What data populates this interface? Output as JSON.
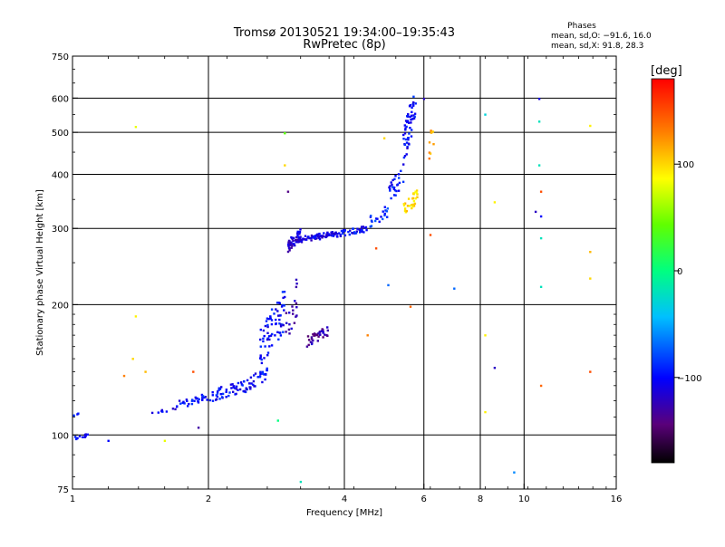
{
  "chart_data": {
    "type": "scatter",
    "title": "Tromsø 20130521 19:34:00–19:35:43",
    "subtitle": "RwPretec (8p)",
    "xlabel": "Frequency [MHz]",
    "ylabel": "Stationary phase Virtual Height [km]",
    "x_scale": "log",
    "y_scale": "log",
    "xlim": [
      1,
      16
    ],
    "ylim": [
      75,
      750
    ],
    "x_ticks": [
      1,
      2,
      4,
      6,
      8,
      10,
      16
    ],
    "x_tick_labels": [
      "1",
      "2",
      "4",
      "6",
      "8",
      "10",
      "16"
    ],
    "y_ticks": [
      75,
      100,
      200,
      300,
      400,
      500,
      600,
      750
    ],
    "y_tick_labels": [
      "75",
      "100",
      "200",
      "300",
      "400",
      "500",
      "600",
      "750"
    ],
    "grid_x": [
      2,
      4,
      6,
      8,
      10
    ],
    "grid_y": [
      100,
      200,
      300,
      400,
      500,
      600
    ],
    "grid": true,
    "stats": {
      "header": "Phases",
      "line_o": "mean, sd,O: −91.6, 16.0",
      "line_x": "mean, sd,X:  91.8, 28.3"
    },
    "colorbar": {
      "label": "[deg]",
      "min": -180,
      "max": 180,
      "ticks": [
        100,
        0,
        -100
      ],
      "tick_labels": [
        "100",
        "0",
        "−100"
      ],
      "colormap": "rainbow"
    },
    "clusters": [
      {
        "f": [
          1.0,
          1.08
        ],
        "h": [
          97,
          101
        ],
        "n": 12,
        "phase": -100
      },
      {
        "f": [
          1.0,
          1.03
        ],
        "h": [
          110,
          113
        ],
        "n": 3,
        "phase": -100
      },
      {
        "f": [
          1.5,
          1.7
        ],
        "h": [
          112,
          116
        ],
        "n": 8,
        "phase": -105
      },
      {
        "f": [
          1.7,
          2.0
        ],
        "h": [
          115,
          125
        ],
        "n": 30,
        "phase": -100
      },
      {
        "f": [
          2.0,
          2.4
        ],
        "h": [
          118,
          135
        ],
        "n": 45,
        "phase": -100
      },
      {
        "f": [
          2.4,
          2.7
        ],
        "h": [
          125,
          145
        ],
        "n": 35,
        "phase": -100
      },
      {
        "f": [
          2.6,
          2.95
        ],
        "h": [
          140,
          220
        ],
        "n": 70,
        "phase": -100
      },
      {
        "f": [
          2.95,
          3.15
        ],
        "h": [
          150,
          240
        ],
        "n": 20,
        "phase": -130
      },
      {
        "f": [
          3.3,
          3.7
        ],
        "h": [
          160,
          180
        ],
        "n": 35,
        "phase": -130
      },
      {
        "f": [
          3.0,
          3.2
        ],
        "h": [
          265,
          300
        ],
        "n": 45,
        "phase": -115
      },
      {
        "f": [
          3.15,
          3.8
        ],
        "h": [
          278,
          296
        ],
        "n": 70,
        "phase": -110
      },
      {
        "f": [
          3.8,
          4.5
        ],
        "h": [
          286,
          305
        ],
        "n": 45,
        "phase": -100
      },
      {
        "f": [
          4.5,
          5.0
        ],
        "h": [
          300,
          340
        ],
        "n": 20,
        "phase": -90
      },
      {
        "f": [
          5.0,
          5.4
        ],
        "h": [
          340,
          420
        ],
        "n": 25,
        "phase": -95
      },
      {
        "f": [
          5.4,
          5.75
        ],
        "h": [
          420,
          640
        ],
        "n": 55,
        "phase": -100
      },
      {
        "f": [
          5.4,
          5.8
        ],
        "h": [
          320,
          370
        ],
        "n": 30,
        "phase": 100
      },
      {
        "f": [
          6.15,
          6.3
        ],
        "h": [
          430,
          540
        ],
        "n": 8,
        "phase": 120
      }
    ],
    "scattered_points": [
      {
        "f": 1.38,
        "h": 515,
        "phase": 80
      },
      {
        "f": 2.95,
        "h": 498,
        "phase": 40
      },
      {
        "f": 2.95,
        "h": 420,
        "phase": 100
      },
      {
        "f": 3.0,
        "h": 365,
        "phase": -140
      },
      {
        "f": 1.38,
        "h": 188,
        "phase": 90
      },
      {
        "f": 1.36,
        "h": 150,
        "phase": 100
      },
      {
        "f": 1.3,
        "h": 137,
        "phase": 130
      },
      {
        "f": 1.45,
        "h": 140,
        "phase": 110
      },
      {
        "f": 1.85,
        "h": 140,
        "phase": 150
      },
      {
        "f": 1.2,
        "h": 97,
        "phase": -100
      },
      {
        "f": 1.6,
        "h": 97,
        "phase": 80
      },
      {
        "f": 1.9,
        "h": 104,
        "phase": -130
      },
      {
        "f": 2.85,
        "h": 108,
        "phase": 0
      },
      {
        "f": 3.2,
        "h": 78,
        "phase": -20
      },
      {
        "f": 4.5,
        "h": 170,
        "phase": 130
      },
      {
        "f": 4.9,
        "h": 485,
        "phase": 100
      },
      {
        "f": 5.6,
        "h": 198,
        "phase": 140
      },
      {
        "f": 5.0,
        "h": 222,
        "phase": -70
      },
      {
        "f": 4.7,
        "h": 270,
        "phase": 150
      },
      {
        "f": 6.2,
        "h": 290,
        "phase": 150
      },
      {
        "f": 7.0,
        "h": 218,
        "phase": -70
      },
      {
        "f": 8.2,
        "h": 550,
        "phase": -30
      },
      {
        "f": 8.6,
        "h": 345,
        "phase": 90
      },
      {
        "f": 8.2,
        "h": 170,
        "phase": 90
      },
      {
        "f": 8.2,
        "h": 113,
        "phase": 90
      },
      {
        "f": 8.6,
        "h": 143,
        "phase": -120
      },
      {
        "f": 9.5,
        "h": 82,
        "phase": -60
      },
      {
        "f": 10.8,
        "h": 598,
        "phase": -110
      },
      {
        "f": 10.8,
        "h": 530,
        "phase": -20
      },
      {
        "f": 10.8,
        "h": 420,
        "phase": -20
      },
      {
        "f": 10.9,
        "h": 365,
        "phase": 150
      },
      {
        "f": 10.6,
        "h": 328,
        "phase": -120
      },
      {
        "f": 10.9,
        "h": 320,
        "phase": -100
      },
      {
        "f": 10.9,
        "h": 285,
        "phase": -20
      },
      {
        "f": 10.9,
        "h": 220,
        "phase": -20
      },
      {
        "f": 10.9,
        "h": 130,
        "phase": 140
      },
      {
        "f": 14.0,
        "h": 518,
        "phase": 90
      },
      {
        "f": 14.0,
        "h": 265,
        "phase": 110
      },
      {
        "f": 14.0,
        "h": 230,
        "phase": 100
      },
      {
        "f": 14.0,
        "h": 140,
        "phase": 150
      },
      {
        "f": 6.3,
        "h": 470,
        "phase": 120
      },
      {
        "f": 6.0,
        "h": 598,
        "phase": -120
      }
    ]
  }
}
